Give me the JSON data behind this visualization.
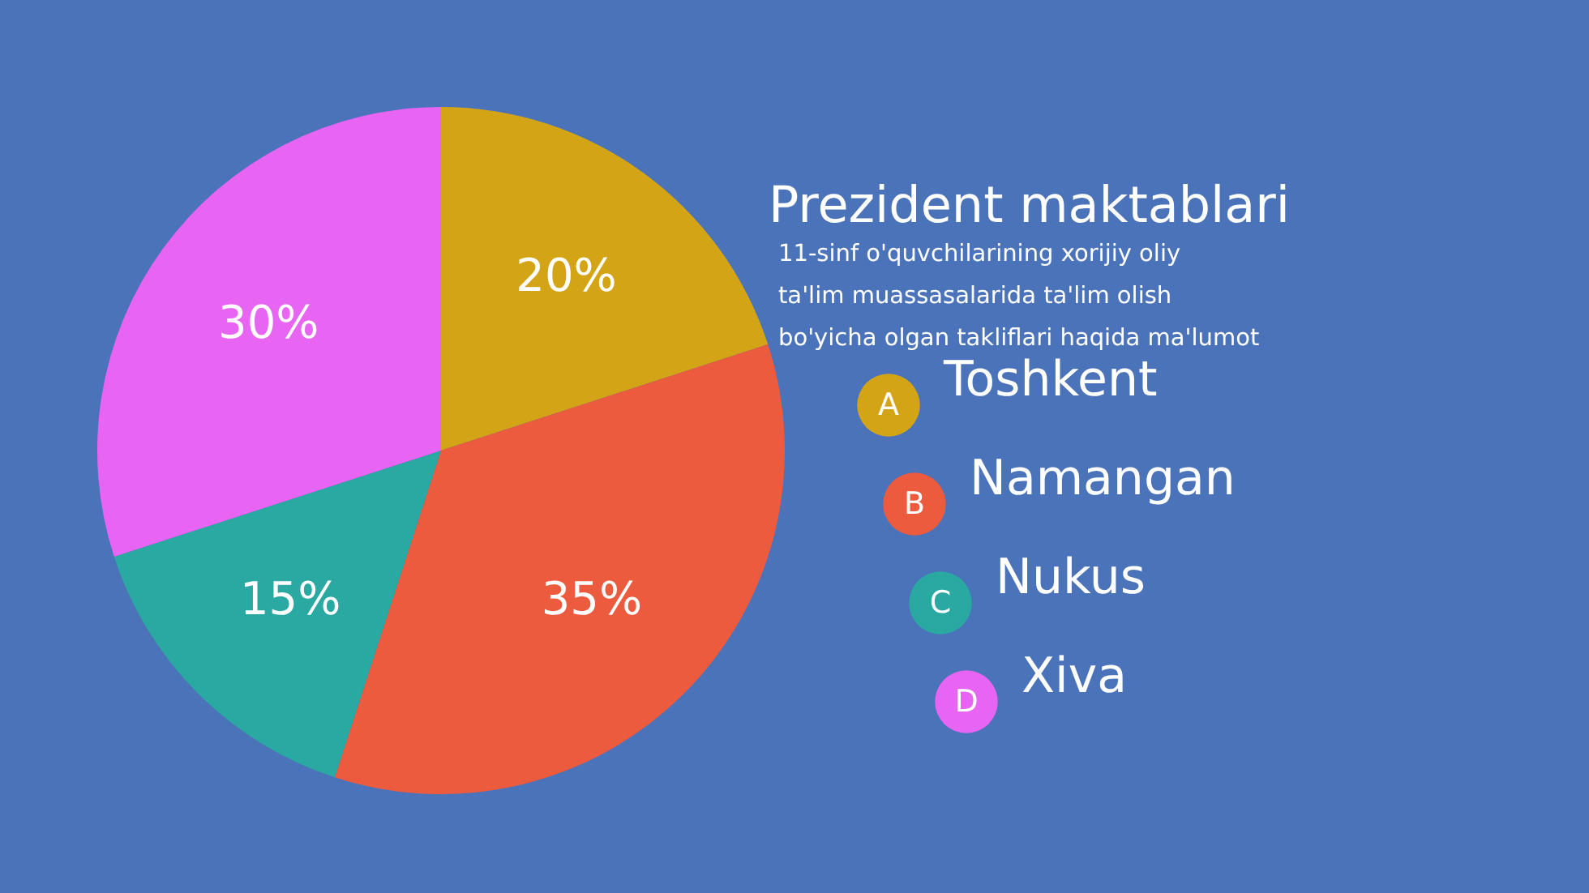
{
  "chart_data": {
    "type": "pie",
    "title": "Prezident maktablari",
    "subtitle": "11-sinf o'quvchilarining xorijiy oliy\nta'lim muassasalarida ta'lim olish\nbo'yicha olgan takliflari haqida ma'lumot",
    "categories": [
      "Toshkent",
      "Namangan",
      "Nukus",
      "Xiva"
    ],
    "values": [
      20,
      35,
      15,
      30
    ],
    "colors": [
      "#d4a417",
      "#ec5b3e",
      "#2aa8a2",
      "#e765f2"
    ],
    "value_labels": [
      "20%",
      "35%",
      "15%",
      "30%"
    ],
    "legend": "right",
    "annotations": [
      "A",
      "B",
      "C",
      "D"
    ]
  }
}
